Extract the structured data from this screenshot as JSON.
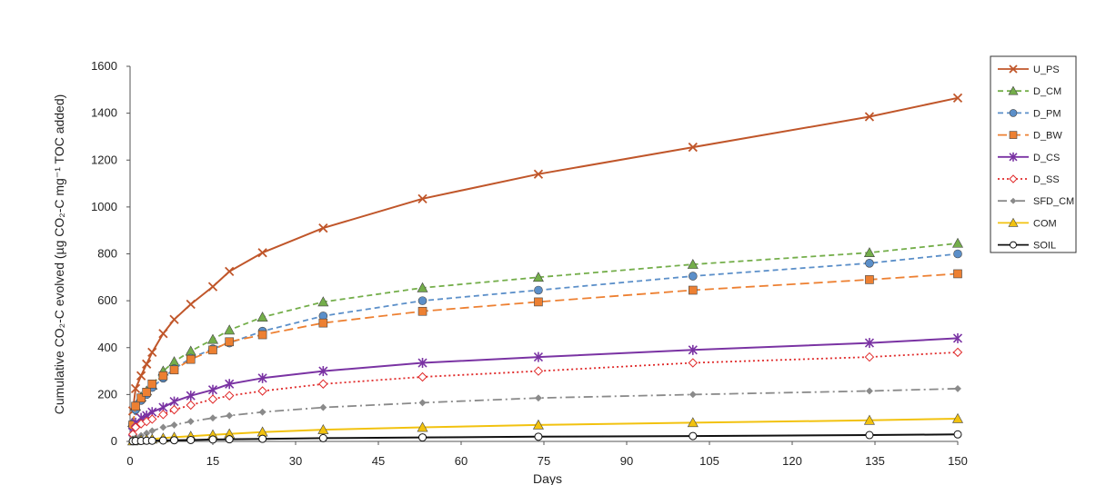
{
  "chart_data": {
    "type": "line",
    "title": "",
    "xlabel": "Days",
    "ylabel": "Cumulative CO₂-C evolved (µg CO₂-C mg⁻¹ TOC added)",
    "xlim": [
      0,
      150
    ],
    "ylim": [
      0,
      1600
    ],
    "xticks": [
      "0",
      "15",
      "30",
      "45",
      "60",
      "75",
      "90",
      "105",
      "120",
      "135",
      "150"
    ],
    "yticks": [
      "0",
      "200",
      "400",
      "600",
      "800",
      "1000",
      "1200",
      "1400",
      "1600"
    ],
    "grid": false,
    "legend_position": "right",
    "series": [
      {
        "name": "U_PS",
        "color": "#c0562a",
        "dash": "solid",
        "marker": "x",
        "x": [
          0.5,
          1,
          2,
          3,
          4,
          6,
          8,
          11,
          15,
          18,
          24,
          35,
          53,
          74,
          102,
          134,
          150
        ],
        "y": [
          130,
          225,
          280,
          330,
          380,
          460,
          520,
          585,
          660,
          725,
          805,
          910,
          1035,
          1140,
          1255,
          1385,
          1465
        ]
      },
      {
        "name": "D_CM",
        "color": "#74ae4a",
        "dash": "dash",
        "marker": "triangle",
        "x": [
          0.5,
          1,
          2,
          3,
          4,
          6,
          8,
          11,
          15,
          18,
          24,
          35,
          53,
          74,
          102,
          134,
          150
        ],
        "y": [
          80,
          150,
          190,
          215,
          240,
          300,
          340,
          385,
          435,
          475,
          530,
          595,
          655,
          700,
          755,
          805,
          845
        ]
      },
      {
        "name": "D_PM",
        "color": "#5b8fc9",
        "dash": "dash",
        "marker": "circle",
        "x": [
          0.5,
          1,
          2,
          3,
          4,
          6,
          8,
          11,
          15,
          18,
          24,
          35,
          53,
          74,
          102,
          134,
          150
        ],
        "y": [
          75,
          135,
          175,
          200,
          230,
          270,
          310,
          355,
          395,
          420,
          470,
          535,
          600,
          645,
          705,
          760,
          800
        ]
      },
      {
        "name": "D_BW",
        "color": "#ed8032",
        "dash": "longdash",
        "marker": "square",
        "x": [
          0.5,
          1,
          2,
          3,
          4,
          6,
          8,
          11,
          15,
          18,
          24,
          35,
          53,
          74,
          102,
          134,
          150
        ],
        "y": [
          70,
          150,
          185,
          210,
          245,
          280,
          305,
          350,
          390,
          425,
          455,
          505,
          555,
          595,
          645,
          690,
          715
        ]
      },
      {
        "name": "D_CS",
        "color": "#7a33a3",
        "dash": "solid",
        "marker": "asterisk",
        "x": [
          0.5,
          1,
          2,
          3,
          4,
          6,
          8,
          11,
          15,
          18,
          24,
          35,
          53,
          74,
          102,
          134,
          150
        ],
        "y": [
          40,
          80,
          100,
          110,
          125,
          145,
          170,
          195,
          220,
          245,
          270,
          300,
          335,
          360,
          390,
          420,
          440
        ]
      },
      {
        "name": "D_SS",
        "color": "#e02a2a",
        "dash": "dot",
        "marker": "diamond-open",
        "x": [
          0.5,
          1,
          2,
          3,
          4,
          6,
          8,
          11,
          15,
          18,
          24,
          35,
          53,
          74,
          102,
          134,
          150
        ],
        "y": [
          30,
          60,
          75,
          85,
          95,
          115,
          135,
          155,
          180,
          195,
          215,
          245,
          275,
          300,
          335,
          360,
          380
        ]
      },
      {
        "name": "SFD_CM",
        "color": "#8a8a8a",
        "dash": "dashdot",
        "marker": "diamond",
        "x": [
          0.5,
          1,
          2,
          3,
          4,
          6,
          8,
          11,
          15,
          18,
          24,
          35,
          53,
          74,
          102,
          134,
          150
        ],
        "y": [
          10,
          15,
          25,
          35,
          45,
          60,
          70,
          85,
          100,
          110,
          125,
          145,
          165,
          185,
          200,
          215,
          225
        ]
      },
      {
        "name": "COM",
        "color": "#f2c20f",
        "dash": "solid",
        "marker": "triangle",
        "x": [
          0.5,
          1,
          2,
          3,
          4,
          6,
          8,
          11,
          15,
          18,
          24,
          35,
          53,
          74,
          102,
          134,
          150
        ],
        "y": [
          2,
          4,
          6,
          8,
          10,
          14,
          18,
          22,
          28,
          32,
          40,
          50,
          60,
          70,
          80,
          90,
          97
        ]
      },
      {
        "name": "SOIL",
        "color": "#111111",
        "dash": "solid",
        "marker": "circle-open",
        "x": [
          0.5,
          1,
          2,
          3,
          4,
          6,
          8,
          11,
          15,
          18,
          24,
          35,
          53,
          74,
          102,
          134,
          150
        ],
        "y": [
          1,
          2,
          2,
          3,
          3,
          4,
          5,
          6,
          8,
          9,
          11,
          14,
          17,
          20,
          23,
          27,
          30
        ]
      }
    ]
  }
}
